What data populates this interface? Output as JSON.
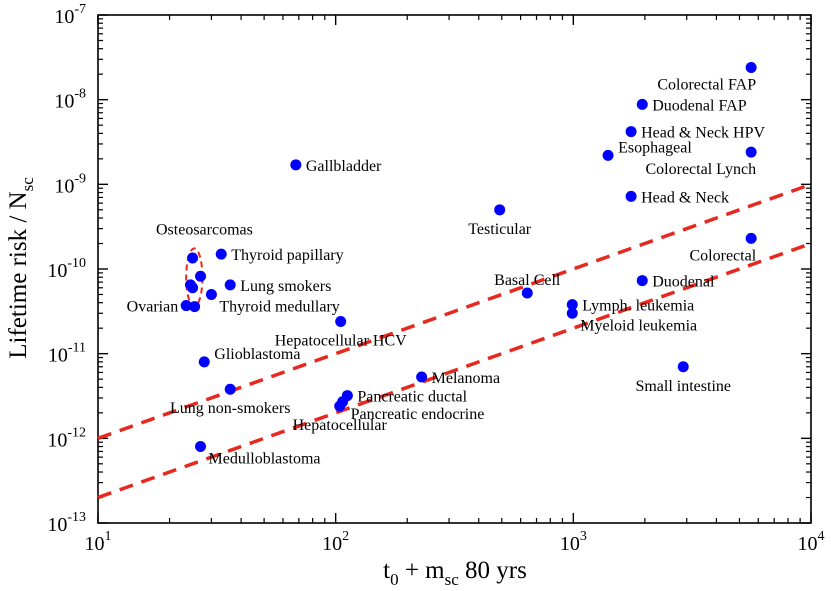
{
  "chart_data": {
    "type": "scatter",
    "x_scale": "log",
    "y_scale": "log",
    "xlim": [
      10,
      10000
    ],
    "ylim": [
      1e-13,
      1e-07
    ],
    "xlabel": {
      "base": "t",
      "sub1": "0",
      "mid": " + m",
      "sub2": "sc",
      "tail": " 80 yrs"
    },
    "ylabel": {
      "base": "Lifetime risk / N",
      "sub": "sc"
    },
    "x_ticks": [
      {
        "value": 10,
        "base": "10",
        "exp": "1"
      },
      {
        "value": 100,
        "base": "10",
        "exp": "2"
      },
      {
        "value": 1000,
        "base": "10",
        "exp": "3"
      },
      {
        "value": 10000,
        "base": "10",
        "exp": "4"
      }
    ],
    "y_ticks": [
      {
        "value": 1e-13,
        "base": "10",
        "exp": "-13"
      },
      {
        "value": 1e-12,
        "base": "10",
        "exp": "-12"
      },
      {
        "value": 1e-11,
        "base": "10",
        "exp": "-11"
      },
      {
        "value": 1e-10,
        "base": "10",
        "exp": "-10"
      },
      {
        "value": 1e-09,
        "base": "10",
        "exp": "-9"
      },
      {
        "value": 1e-08,
        "base": "10",
        "exp": "-8"
      },
      {
        "value": 1e-07,
        "base": "10",
        "exp": "-7"
      }
    ],
    "marker_color": "#0000ff",
    "line_color": "#e8281e",
    "lines": [
      {
        "name": "upper-trend",
        "style": "dashed",
        "points": [
          [
            10,
            1e-12
          ],
          [
            10000,
            1e-09
          ]
        ]
      },
      {
        "name": "lower-trend",
        "style": "dashed",
        "points": [
          [
            10,
            2e-13
          ],
          [
            10000,
            2e-10
          ]
        ]
      }
    ],
    "ellipse": {
      "label": "Osteosarcomas",
      "color": "#e8281e",
      "center": [
        25.5,
        8e-11
      ],
      "span_x": [
        23.5,
        27.5
      ],
      "span_y": [
        3.6e-11,
        1.75e-10
      ]
    },
    "points": [
      {
        "name": "Colorectal FAP",
        "x": 5600,
        "y": 2.4e-08,
        "label_pos": "left-below"
      },
      {
        "name": "Duodenal FAP",
        "x": 1950,
        "y": 8.8e-09,
        "label_pos": "right"
      },
      {
        "name": "Head & Neck HPV",
        "x": 1750,
        "y": 4.2e-09,
        "label_pos": "right"
      },
      {
        "name": "Esophageal",
        "x": 1400,
        "y": 2.2e-09,
        "label_pos": "right-above"
      },
      {
        "name": "Colorectal Lynch",
        "x": 5600,
        "y": 2.4e-09,
        "label_pos": "left-below"
      },
      {
        "name": "Gallbladder",
        "x": 68,
        "y": 1.7e-09,
        "label_pos": "right"
      },
      {
        "name": "Head & Neck",
        "x": 1750,
        "y": 7.2e-10,
        "label_pos": "right"
      },
      {
        "name": "Testicular",
        "x": 490,
        "y": 5e-10,
        "label_pos": "below"
      },
      {
        "name": "Colorectal",
        "x": 5600,
        "y": 2.3e-10,
        "label_pos": "left-below"
      },
      {
        "name": "Thyroid papillary",
        "x": 33,
        "y": 1.5e-10,
        "label_pos": "right"
      },
      {
        "name": "Lung smokers",
        "x": 36,
        "y": 6.5e-11,
        "label_pos": "right"
      },
      {
        "name": "Thyroid medullary",
        "x": 30,
        "y": 5e-11,
        "label_pos": "right-below"
      },
      {
        "name": "Basal Cell",
        "x": 640,
        "y": 5.2e-11,
        "label_pos": "above"
      },
      {
        "name": "Duodenal",
        "x": 1950,
        "y": 7.3e-11,
        "label_pos": "right"
      },
      {
        "name": "Lymph. leukemia",
        "x": 990,
        "y": 3.8e-11,
        "label_pos": "right"
      },
      {
        "name": "Myeloid leukemia",
        "x": 990,
        "y": 3e-11,
        "label_pos": "right-below"
      },
      {
        "name": "Ovarian",
        "x": 23.5,
        "y": 3.7e-11,
        "label_pos": "left"
      },
      {
        "name": "Hepatocellular HCV",
        "x": 105,
        "y": 2.4e-11,
        "label_pos": "below"
      },
      {
        "name": "Glioblastoma",
        "x": 28,
        "y": 8e-12,
        "label_pos": "right-above"
      },
      {
        "name": "Small intestine",
        "x": 2900,
        "y": 7e-12,
        "label_pos": "below"
      },
      {
        "name": "Melanoma",
        "x": 230,
        "y": 5.3e-12,
        "label_pos": "right"
      },
      {
        "name": "Lung non-smokers",
        "x": 36,
        "y": 3.8e-12,
        "label_pos": "below"
      },
      {
        "name": "Pancreatic ductal",
        "x": 112,
        "y": 3.2e-12,
        "label_pos": "right"
      },
      {
        "name": "Pancreatic endocrine",
        "x": 107,
        "y": 2.7e-12,
        "label_pos": "right-below"
      },
      {
        "name": "Hepatocellular",
        "x": 104,
        "y": 2.4e-12,
        "label_pos": "below"
      },
      {
        "name": "Medulloblastoma",
        "x": 27,
        "y": 8e-13,
        "label_pos": "right-below"
      }
    ],
    "extra_points": [
      {
        "x": 25,
        "y": 1.35e-10
      },
      {
        "x": 27,
        "y": 8.2e-11
      },
      {
        "x": 24.5,
        "y": 6.5e-11
      },
      {
        "x": 25,
        "y": 6e-11
      },
      {
        "x": 25.5,
        "y": 3.6e-11
      }
    ]
  }
}
